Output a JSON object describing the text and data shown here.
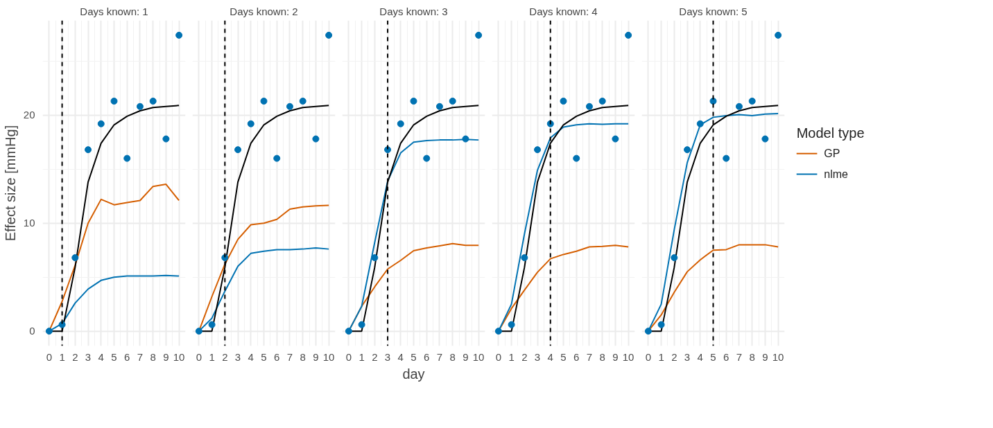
{
  "chart_data": [
    {
      "type": "line",
      "title": "Days known: 1",
      "ylabel": "Effect size [mmHg]",
      "x": [
        0,
        1,
        2,
        3,
        4,
        5,
        6,
        7,
        8,
        9,
        10
      ],
      "xlim": [
        -0.5,
        10.5
      ],
      "ylim": [
        -1.37,
        28.77
      ],
      "xticks": [
        0,
        1,
        2,
        3,
        4,
        5,
        6,
        7,
        8,
        9,
        10,
        {
          "value": 0.5,
          "label": null
        },
        {
          "value": 1.5,
          "label": null
        },
        {
          "value": 2.5,
          "label": null
        },
        {
          "value": 3.5,
          "label": null
        },
        {
          "value": 4.5,
          "label": null
        },
        {
          "value": 5.5,
          "label": null
        },
        {
          "value": 6.5,
          "label": null
        },
        {
          "value": 7.5,
          "label": null
        },
        {
          "value": 8.5,
          "label": null
        },
        {
          "value": 9.5,
          "label": null
        }
      ],
      "yticks": [
        0,
        10,
        20,
        {
          "value": 5,
          "label": null
        },
        {
          "value": 15,
          "label": null
        },
        {
          "value": 25,
          "label": null
        }
      ],
      "grid": true,
      "ref_lines": [
        {
          "axis": "x",
          "value": 1,
          "color": "#000000",
          "line_style": "dashed"
        }
      ],
      "series": [
        {
          "color": "#d55e00",
          "values": [
            0,
            2.75,
            6.1,
            10.0,
            12.2,
            11.7,
            11.9,
            12.1,
            13.4,
            13.6,
            12.1
          ]
        },
        {
          "color": "#0072b2",
          "values": [
            0,
            0.7,
            2.6,
            3.9,
            4.7,
            5.0,
            5.1,
            5.1,
            5.1,
            5.15,
            5.1
          ]
        },
        {
          "color": "#000000",
          "values": [
            0,
            0,
            5.9,
            13.8,
            17.4,
            19.1,
            19.9,
            20.4,
            20.7,
            20.8,
            20.9
          ]
        },
        {
          "type": "scatter",
          "color": "#0072b2",
          "marker": "circle",
          "values": [
            0,
            0.6,
            6.8,
            16.8,
            19.2,
            21.3,
            16.0,
            20.8,
            21.3,
            17.8,
            27.4
          ]
        }
      ]
    },
    {
      "type": "line",
      "title": "Days known: 2",
      "x": [
        0,
        1,
        2,
        3,
        4,
        5,
        6,
        7,
        8,
        9,
        10
      ],
      "xlim": [
        -0.5,
        10.5
      ],
      "ylim": [
        -1.37,
        28.77
      ],
      "tick_labels": "x",
      "xticks": [
        0,
        1,
        2,
        3,
        4,
        5,
        6,
        7,
        8,
        9,
        10,
        {
          "value": 0.5,
          "label": null
        },
        {
          "value": 1.5,
          "label": null
        },
        {
          "value": 2.5,
          "label": null
        },
        {
          "value": 3.5,
          "label": null
        },
        {
          "value": 4.5,
          "label": null
        },
        {
          "value": 5.5,
          "label": null
        },
        {
          "value": 6.5,
          "label": null
        },
        {
          "value": 7.5,
          "label": null
        },
        {
          "value": 8.5,
          "label": null
        },
        {
          "value": 9.5,
          "label": null
        }
      ],
      "yticks": [
        0,
        10,
        20,
        {
          "value": 5,
          "label": null
        },
        {
          "value": 15,
          "label": null
        },
        {
          "value": 25,
          "label": null
        }
      ],
      "grid": true,
      "ref_lines": [
        {
          "axis": "x",
          "value": 2,
          "color": "#000000",
          "line_style": "dashed"
        }
      ],
      "series": [
        {
          "color": "#d55e00",
          "values": [
            0,
            3.2,
            6.2,
            8.5,
            9.85,
            10.0,
            10.35,
            11.3,
            11.5,
            11.6,
            11.65
          ]
        },
        {
          "color": "#0072b2",
          "values": [
            0,
            1.2,
            3.7,
            6.0,
            7.2,
            7.4,
            7.55,
            7.55,
            7.6,
            7.7,
            7.6
          ]
        },
        {
          "color": "#000000",
          "values": [
            0,
            0,
            5.9,
            13.8,
            17.4,
            19.1,
            19.9,
            20.4,
            20.7,
            20.8,
            20.9
          ]
        },
        {
          "type": "scatter",
          "color": "#0072b2",
          "marker": "circle",
          "values": [
            0,
            0.6,
            6.8,
            16.8,
            19.2,
            21.3,
            16.0,
            20.8,
            21.3,
            17.8,
            27.4
          ]
        }
      ]
    },
    {
      "type": "line",
      "title": "Days known: 3",
      "xlabel": "day",
      "x": [
        0,
        1,
        2,
        3,
        4,
        5,
        6,
        7,
        8,
        9,
        10
      ],
      "xlim": [
        -0.5,
        10.5
      ],
      "ylim": [
        -1.37,
        28.77
      ],
      "tick_labels": "x",
      "xticks": [
        0,
        1,
        2,
        3,
        4,
        5,
        6,
        7,
        8,
        9,
        10,
        {
          "value": 0.5,
          "label": null
        },
        {
          "value": 1.5,
          "label": null
        },
        {
          "value": 2.5,
          "label": null
        },
        {
          "value": 3.5,
          "label": null
        },
        {
          "value": 4.5,
          "label": null
        },
        {
          "value": 5.5,
          "label": null
        },
        {
          "value": 6.5,
          "label": null
        },
        {
          "value": 7.5,
          "label": null
        },
        {
          "value": 8.5,
          "label": null
        },
        {
          "value": 9.5,
          "label": null
        }
      ],
      "yticks": [
        0,
        10,
        20,
        {
          "value": 5,
          "label": null
        },
        {
          "value": 15,
          "label": null
        },
        {
          "value": 25,
          "label": null
        }
      ],
      "grid": true,
      "ref_lines": [
        {
          "axis": "x",
          "value": 3,
          "color": "#000000",
          "line_style": "dashed"
        }
      ],
      "series": [
        {
          "color": "#d55e00",
          "values": [
            0,
            2.3,
            4.1,
            5.75,
            6.55,
            7.45,
            7.7,
            7.9,
            8.1,
            7.95,
            7.95
          ]
        },
        {
          "color": "#0072b2",
          "values": [
            0,
            2.3,
            8.2,
            13.9,
            16.5,
            17.5,
            17.65,
            17.7,
            17.7,
            17.75,
            17.7
          ]
        },
        {
          "color": "#000000",
          "values": [
            0,
            0,
            5.9,
            13.8,
            17.4,
            19.1,
            19.9,
            20.4,
            20.7,
            20.8,
            20.9
          ]
        },
        {
          "type": "scatter",
          "color": "#0072b2",
          "marker": "circle",
          "values": [
            0,
            0.6,
            6.8,
            16.8,
            19.2,
            21.3,
            16.0,
            20.8,
            21.3,
            17.8,
            27.4
          ]
        }
      ]
    },
    {
      "type": "line",
      "title": "Days known: 4",
      "x": [
        0,
        1,
        2,
        3,
        4,
        5,
        6,
        7,
        8,
        9,
        10
      ],
      "xlim": [
        -0.5,
        10.5
      ],
      "ylim": [
        -1.37,
        28.77
      ],
      "tick_labels": "x",
      "xticks": [
        0,
        1,
        2,
        3,
        4,
        5,
        6,
        7,
        8,
        9,
        10,
        {
          "value": 0.5,
          "label": null
        },
        {
          "value": 1.5,
          "label": null
        },
        {
          "value": 2.5,
          "label": null
        },
        {
          "value": 3.5,
          "label": null
        },
        {
          "value": 4.5,
          "label": null
        },
        {
          "value": 5.5,
          "label": null
        },
        {
          "value": 6.5,
          "label": null
        },
        {
          "value": 7.5,
          "label": null
        },
        {
          "value": 8.5,
          "label": null
        },
        {
          "value": 9.5,
          "label": null
        }
      ],
      "yticks": [
        0,
        10,
        20,
        {
          "value": 5,
          "label": null
        },
        {
          "value": 15,
          "label": null
        },
        {
          "value": 25,
          "label": null
        }
      ],
      "grid": true,
      "ref_lines": [
        {
          "axis": "x",
          "value": 4,
          "color": "#000000",
          "line_style": "dashed"
        }
      ],
      "series": [
        {
          "color": "#d55e00",
          "values": [
            0,
            2.1,
            3.8,
            5.45,
            6.7,
            7.1,
            7.4,
            7.8,
            7.85,
            7.95,
            7.8
          ]
        },
        {
          "color": "#0072b2",
          "values": [
            0,
            2.5,
            9.0,
            14.9,
            17.9,
            18.9,
            19.1,
            19.2,
            19.15,
            19.2,
            19.2
          ]
        },
        {
          "color": "#000000",
          "values": [
            0,
            0,
            5.9,
            13.8,
            17.4,
            19.1,
            19.9,
            20.4,
            20.7,
            20.8,
            20.9
          ]
        },
        {
          "type": "scatter",
          "color": "#0072b2",
          "marker": "circle",
          "values": [
            0,
            0.6,
            6.8,
            16.8,
            19.2,
            21.3,
            16.0,
            20.8,
            21.3,
            17.8,
            27.4
          ]
        }
      ]
    },
    {
      "type": "line",
      "title": "Days known: 5",
      "x": [
        0,
        1,
        2,
        3,
        4,
        5,
        6,
        7,
        8,
        9,
        10
      ],
      "xlim": [
        -0.5,
        10.5
      ],
      "ylim": [
        -1.37,
        28.77
      ],
      "tick_labels": "x",
      "legend": "right",
      "legend_title": "Model type",
      "xticks": [
        0,
        1,
        2,
        3,
        4,
        5,
        6,
        7,
        8,
        9,
        10,
        {
          "value": 0.5,
          "label": null
        },
        {
          "value": 1.5,
          "label": null
        },
        {
          "value": 2.5,
          "label": null
        },
        {
          "value": 3.5,
          "label": null
        },
        {
          "value": 4.5,
          "label": null
        },
        {
          "value": 5.5,
          "label": null
        },
        {
          "value": 6.5,
          "label": null
        },
        {
          "value": 7.5,
          "label": null
        },
        {
          "value": 8.5,
          "label": null
        },
        {
          "value": 9.5,
          "label": null
        }
      ],
      "yticks": [
        0,
        10,
        20,
        {
          "value": 5,
          "label": null
        },
        {
          "value": 15,
          "label": null
        },
        {
          "value": 25,
          "label": null
        }
      ],
      "grid": true,
      "ref_lines": [
        {
          "axis": "x",
          "value": 5,
          "color": "#000000",
          "line_style": "dashed"
        }
      ],
      "series": [
        {
          "name": "GP",
          "color": "#d55e00",
          "values": [
            0,
            1.5,
            3.6,
            5.5,
            6.6,
            7.5,
            7.55,
            8.0,
            8.0,
            8.0,
            7.8
          ]
        },
        {
          "name": "nlme",
          "color": "#0072b2",
          "values": [
            0,
            2.5,
            9.4,
            15.6,
            19.1,
            19.8,
            19.95,
            20.05,
            19.95,
            20.1,
            20.15
          ]
        },
        {
          "color": "#000000",
          "values": [
            0,
            0,
            5.9,
            13.8,
            17.4,
            19.1,
            19.9,
            20.4,
            20.7,
            20.8,
            20.9
          ]
        },
        {
          "type": "scatter",
          "color": "#0072b2",
          "marker": "circle",
          "values": [
            0,
            0.6,
            6.8,
            16.8,
            19.2,
            21.3,
            16.0,
            20.8,
            21.3,
            17.8,
            27.4
          ]
        }
      ]
    }
  ]
}
